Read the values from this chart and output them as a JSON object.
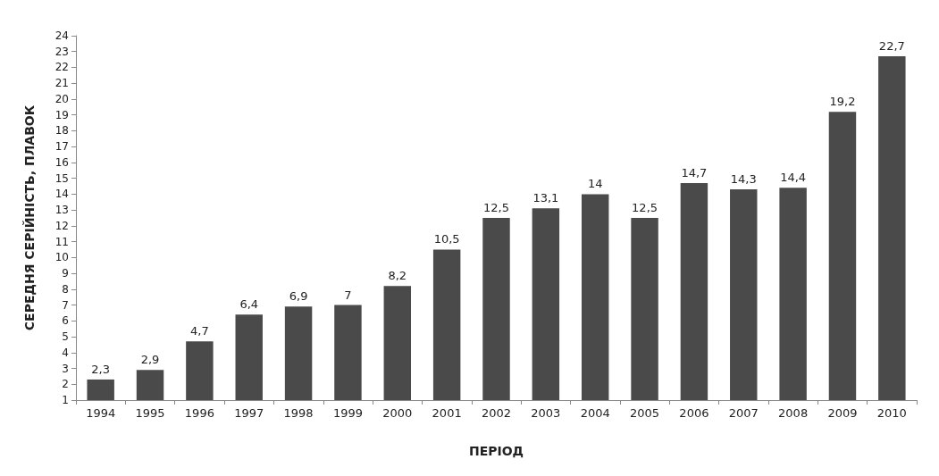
{
  "chart_data": {
    "type": "bar",
    "xlabel": "ПЕРІОД",
    "ylabel": "СЕРЕДНЯ СЕРІЙНІСТЬ, ПЛАВОК",
    "categories": [
      "1994",
      "1995",
      "1996",
      "1997",
      "1998",
      "1999",
      "2000",
      "2001",
      "2002",
      "2003",
      "2004",
      "2005",
      "2006",
      "2007",
      "2008",
      "2009",
      "2010"
    ],
    "values": [
      2.3,
      2.9,
      4.7,
      6.4,
      6.9,
      7,
      8.2,
      10.5,
      12.5,
      13.1,
      14,
      12.5,
      14.7,
      14.3,
      14.4,
      19.2,
      22.7
    ],
    "value_labels": [
      "2,3",
      "2,9",
      "4,7",
      "6,4",
      "6,9",
      "7",
      "8,2",
      "10,5",
      "12,5",
      "13,1",
      "14",
      "12,5",
      "14,7",
      "14,3",
      "14,4",
      "19,2",
      "22,7"
    ],
    "color": "#4a4a4a",
    "ylim": [
      1,
      24
    ],
    "yticks": [
      1,
      2,
      3,
      4,
      5,
      6,
      7,
      8,
      9,
      10,
      11,
      12,
      13,
      14,
      15,
      16,
      17,
      18,
      19,
      20,
      21,
      22,
      23,
      24
    ],
    "grid": false
  }
}
